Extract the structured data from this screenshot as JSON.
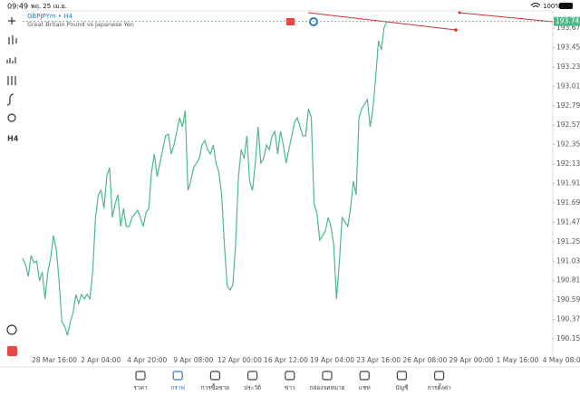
{
  "status_bar": {
    "time": "09:49",
    "date": "พฤ. 25 เม.ย.",
    "battery": "100%"
  },
  "left_toolbar": {
    "timeframe": "H4"
  },
  "chart_data": {
    "type": "line",
    "title": "GBPJPYm • H4",
    "subtitle": "Great Britain Pound vs Japanese Yen",
    "color": "#4cb88a",
    "last_price": 193.745,
    "x_labels": [
      "28 Mar 16:00",
      "2 Apr 04:00",
      "4 Apr 20:00",
      "9 Apr 08:00",
      "12 Apr 00:00",
      "16 Apr 12:00",
      "19 Apr 04:00",
      "23 Apr 16:00",
      "26 Apr 08:00",
      "29 Apr 00:00",
      "1 May 16:00",
      "4 May 08:00"
    ],
    "ylim": [
      189.935,
      193.865
    ],
    "yticks": [
      {
        "value": 193.67,
        "label": "193.670"
      },
      {
        "value": 193.45,
        "label": "193.450"
      },
      {
        "value": 193.23,
        "label": "193.230"
      },
      {
        "value": 193.01,
        "label": "193.010"
      },
      {
        "value": 192.79,
        "label": "192.790"
      },
      {
        "value": 192.57,
        "label": "192.570"
      },
      192.35,
      {
        "value": 192.13,
        "label": "192.130"
      },
      191.91,
      191.69,
      {
        "value": 191.47,
        "label": "191.470"
      },
      {
        "value": 191.25,
        "label": "191.250"
      },
      {
        "value": 191.03,
        "label": "191.030"
      },
      {
        "value": 190.81,
        "label": "190.810"
      },
      {
        "value": 190.59,
        "label": "190.590"
      },
      {
        "value": 190.37,
        "label": "190.370"
      },
      {
        "value": 190.15,
        "label": "190.150"
      }
    ],
    "values": [
      191.064,
      190.992,
      190.858,
      191.094,
      191.012,
      191.033,
      190.807,
      190.91,
      190.602,
      190.91,
      191.064,
      191.32,
      191.166,
      190.807,
      190.345,
      190.294,
      190.191,
      190.345,
      190.448,
      190.653,
      190.551,
      190.653,
      190.602,
      190.653,
      190.602,
      190.91,
      191.525,
      191.782,
      191.833,
      191.628,
      191.987,
      192.09,
      191.525,
      191.679,
      191.782,
      191.423,
      191.628,
      191.423,
      191.423,
      191.525,
      191.566,
      191.607,
      191.525,
      191.423,
      191.577,
      191.628,
      192.038,
      192.244,
      191.987,
      192.141,
      192.295,
      192.449,
      192.469,
      192.244,
      192.346,
      192.5,
      192.654,
      192.551,
      192.736,
      191.833,
      191.936,
      192.09,
      192.141,
      192.192,
      192.346,
      192.398,
      192.295,
      192.244,
      192.346,
      192.141,
      192.038,
      191.782,
      191.218,
      190.756,
      190.704,
      190.756,
      191.218,
      191.987,
      192.295,
      192.192,
      192.449,
      191.936,
      191.833,
      192.141,
      192.551,
      192.141,
      192.192,
      192.346,
      192.295,
      192.449,
      192.5,
      192.244,
      192.5,
      192.346,
      192.141,
      192.295,
      192.449,
      192.603,
      192.654,
      192.551,
      192.449,
      192.449,
      192.757,
      192.654,
      191.679,
      191.577,
      191.269,
      191.32,
      191.371,
      191.525,
      191.423,
      191.218,
      190.602,
      191.012,
      191.525,
      191.474,
      191.423,
      191.628,
      191.936,
      191.782,
      192.654,
      192.757,
      192.808,
      192.859,
      192.551,
      192.757,
      193.116,
      193.526,
      193.424,
      193.68,
      193.745
    ]
  },
  "tabs": [
    "ราคา",
    "กราฟ",
    "การซื้อขาย",
    "ประวัติ",
    "ข่าว",
    "กล่องจดหมาย",
    "แชท",
    "บัญชี",
    "การตั้งค่า"
  ]
}
